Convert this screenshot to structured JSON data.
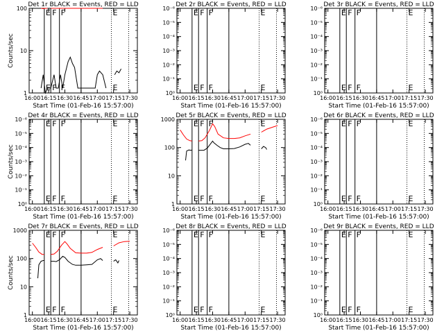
{
  "figure": {
    "xlabel": "Start Time (01-Feb-16 15:57:00)",
    "ylabel": "Counts/sec",
    "x_ticks": [
      "16:00",
      "16:15",
      "16:30",
      "16:45",
      "17:00",
      "17:15",
      "17:30"
    ],
    "line_colors": {
      "events": "#000000",
      "lld": "#ff0000"
    }
  },
  "chart_data": [
    {
      "type": "line",
      "title": "Det 1r BLACK = Events, RED = LLD",
      "xlabel": "Start Time (01-Feb-16 15:57:00)",
      "ylabel": "Counts/sec",
      "y_scale": "log",
      "ylim": [
        1,
        100
      ],
      "y_ticks": [
        "1",
        "10",
        "100"
      ],
      "xlim": [
        "15:57",
        "17:37"
      ],
      "solid_vlines": [
        "16:11",
        "16:17",
        "16:25",
        "16:45"
      ],
      "dotted_vlines": [
        "17:13",
        "17:29"
      ],
      "flags": [
        {
          "label": "E",
          "x": "16:11"
        },
        {
          "label": "F",
          "x": "16:17"
        },
        {
          "label": "F",
          "x": "16:25"
        },
        {
          "label": "E",
          "x": "17:13"
        }
      ],
      "series": [
        {
          "name": "Events",
          "color": "#000000",
          "points": [
            [
              "16:08",
              1.3
            ],
            [
              "16:10",
              2.7
            ],
            [
              "16:12",
              1.0
            ],
            [
              "16:14",
              1.3
            ],
            [
              "16:17",
              1.3
            ],
            [
              "16:20",
              2.7
            ],
            [
              "16:22",
              1.3
            ],
            [
              "16:24",
              1.3
            ],
            [
              "16:26",
              2.7
            ],
            [
              "16:28",
              1.3
            ],
            [
              "16:30",
              2.7
            ],
            [
              "16:33",
              5.5
            ],
            [
              "16:35",
              7.0
            ],
            [
              "16:37",
              5.0
            ],
            [
              "16:39",
              4.0
            ],
            [
              "16:42",
              1.3
            ],
            [
              "16:45",
              1.3
            ],
            [
              "16:48",
              1.3
            ],
            [
              "16:52",
              1.3
            ],
            [
              "16:55",
              1.3
            ],
            [
              "16:58",
              1.3
            ],
            [
              "17:00",
              2.7
            ],
            [
              "17:02",
              3.3
            ],
            [
              "17:05",
              2.7
            ],
            [
              "17:08",
              1.3
            ]
          ],
          "points_2": [
            [
              "17:16",
              2.7
            ],
            [
              "17:18",
              3.3
            ],
            [
              "17:20",
              3.0
            ],
            [
              "17:22",
              3.7
            ]
          ]
        },
        {
          "name": "LLD",
          "color": "#ff0000",
          "points": [
            [
              "16:08",
              100
            ],
            [
              "16:10",
              98
            ],
            [
              "16:12",
              100
            ],
            [
              "16:14",
              100
            ]
          ],
          "points_2": [
            [
              "16:17",
              100
            ],
            [
              "16:22",
              100
            ],
            [
              "16:30",
              100
            ],
            [
              "16:40",
              100
            ],
            [
              "16:50",
              100
            ],
            [
              "17:00",
              100
            ],
            [
              "17:05",
              100
            ]
          ],
          "points_3": []
        }
      ]
    },
    {
      "type": "line",
      "title": "Det 2r BLACK = Events, RED = LLD",
      "xlabel": "Start Time (01-Feb-16 15:57:00)",
      "ylabel": "",
      "y_scale": "log",
      "ylim": [
        1,
        1000000
      ],
      "y_ticks": [
        "10⁰",
        "10⁻¹",
        "10⁻²",
        "10⁻³",
        "10⁻⁴",
        "10⁻⁵",
        "10⁻⁶"
      ],
      "xlim": [
        "15:57",
        "17:37"
      ],
      "solid_vlines": [
        "16:11",
        "16:17",
        "16:25",
        "16:45"
      ],
      "dotted_vlines": [
        "17:13",
        "17:29"
      ],
      "flags": [
        {
          "label": "E",
          "x": "16:11"
        },
        {
          "label": "F",
          "x": "16:17"
        },
        {
          "label": "F",
          "x": "16:25"
        },
        {
          "label": "E",
          "x": "17:13"
        }
      ],
      "series": []
    },
    {
      "type": "line",
      "title": "Det 3r BLACK = Events, RED = LLD",
      "xlabel": "Start Time (01-Feb-16 15:57:00)",
      "ylabel": "",
      "y_scale": "log",
      "ylim": [
        1,
        1000000
      ],
      "y_ticks": [
        "10⁰",
        "10⁻¹",
        "10⁻²",
        "10⁻³",
        "10⁻⁴",
        "10⁻⁵",
        "10⁻⁶"
      ],
      "xlim": [
        "15:57",
        "17:37"
      ],
      "solid_vlines": [
        "16:11",
        "16:17",
        "16:25",
        "16:45"
      ],
      "dotted_vlines": [
        "17:13",
        "17:29"
      ],
      "flags": [
        {
          "label": "E",
          "x": "16:11"
        },
        {
          "label": "F",
          "x": "16:17"
        },
        {
          "label": "F",
          "x": "16:25"
        },
        {
          "label": "E",
          "x": "17:13"
        }
      ],
      "series": []
    },
    {
      "type": "line",
      "title": "Det 4r BLACK = Events, RED = LLD",
      "xlabel": "Start Time (01-Feb-16 15:57:00)",
      "ylabel": "Counts/sec",
      "y_scale": "log",
      "ylim": [
        1,
        1000000
      ],
      "y_ticks": [
        "10⁰",
        "10⁻¹",
        "10⁻²",
        "10⁻³",
        "10⁻⁴",
        "10⁻⁵",
        "10⁻⁶"
      ],
      "xlim": [
        "15:57",
        "17:37"
      ],
      "solid_vlines": [
        "16:11",
        "16:17",
        "16:25",
        "16:45"
      ],
      "dotted_vlines": [
        "17:13",
        "17:29"
      ],
      "flags": [
        {
          "label": "E",
          "x": "16:11"
        },
        {
          "label": "F",
          "x": "16:17"
        },
        {
          "label": "F",
          "x": "16:25"
        },
        {
          "label": "E",
          "x": "17:13"
        }
      ],
      "series": []
    },
    {
      "type": "line",
      "title": "Det 5r BLACK = Events, RED = LLD",
      "xlabel": "Start Time (01-Feb-16 15:57:00)",
      "ylabel": "",
      "y_scale": "log",
      "ylim": [
        1,
        1000
      ],
      "y_ticks": [
        "1",
        "10",
        "100",
        "1000"
      ],
      "xlim": [
        "15:57",
        "17:37"
      ],
      "solid_vlines": [
        "16:11",
        "16:17",
        "16:25",
        "16:45"
      ],
      "dotted_vlines": [
        "17:13",
        "17:29"
      ],
      "flags": [
        {
          "label": "E",
          "x": "16:11"
        },
        {
          "label": "F",
          "x": "16:17"
        },
        {
          "label": "F",
          "x": "16:25"
        },
        {
          "label": "E",
          "x": "17:13"
        }
      ],
      "series": [
        {
          "name": "Events",
          "color": "#000000",
          "points": [
            [
              "16:05",
              35
            ],
            [
              "16:06",
              75
            ],
            [
              "16:08",
              82
            ],
            [
              "16:10",
              80
            ],
            [
              "16:11",
              82
            ]
          ],
          "points_2": [
            [
              "16:17",
              80
            ],
            [
              "16:20",
              80
            ],
            [
              "16:22",
              80
            ],
            [
              "16:25",
              95
            ],
            [
              "16:28",
              135
            ],
            [
              "16:30",
              170
            ],
            [
              "16:31",
              150
            ],
            [
              "16:34",
              120
            ],
            [
              "16:37",
              100
            ],
            [
              "16:40",
              90
            ],
            [
              "16:45",
              90
            ],
            [
              "16:50",
              92
            ],
            [
              "16:55",
              105
            ],
            [
              "17:00",
              130
            ],
            [
              "17:03",
              140
            ],
            [
              "17:05",
              120
            ]
          ],
          "points_3": [
            [
              "17:15",
              90
            ],
            [
              "17:17",
              110
            ],
            [
              "17:19",
              100
            ],
            [
              "17:20",
              85
            ]
          ]
        },
        {
          "name": "LLD",
          "color": "#ff0000",
          "points": [
            [
              "16:00",
              420
            ],
            [
              "16:03",
              280
            ],
            [
              "16:06",
              200
            ],
            [
              "16:09",
              175
            ],
            [
              "16:11",
              170
            ]
          ],
          "points_2": [
            [
              "16:17",
              170
            ],
            [
              "16:20",
              175
            ],
            [
              "16:23",
              220
            ],
            [
              "16:27",
              400
            ],
            [
              "16:30",
              700
            ],
            [
              "16:32",
              550
            ],
            [
              "16:35",
              300
            ],
            [
              "16:40",
              220
            ],
            [
              "16:45",
              210
            ],
            [
              "16:50",
              210
            ],
            [
              "16:55",
              220
            ],
            [
              "17:00",
              260
            ],
            [
              "17:05",
              300
            ]
          ],
          "points_3": [
            [
              "17:15",
              350
            ],
            [
              "17:20",
              450
            ],
            [
              "17:25",
              520
            ],
            [
              "17:30",
              600
            ]
          ]
        }
      ]
    },
    {
      "type": "line",
      "title": "Det 6r BLACK = Events, RED = LLD",
      "xlabel": "Start Time (01-Feb-16 15:57:00)",
      "ylabel": "",
      "y_scale": "log",
      "ylim": [
        1,
        1000000
      ],
      "y_ticks": [
        "10⁰",
        "10⁻¹",
        "10⁻²",
        "10⁻³",
        "10⁻⁴",
        "10⁻⁵",
        "10⁻⁶"
      ],
      "xlim": [
        "15:57",
        "17:37"
      ],
      "solid_vlines": [
        "16:11",
        "16:17",
        "16:25",
        "16:45"
      ],
      "dotted_vlines": [
        "17:13",
        "17:29"
      ],
      "flags": [
        {
          "label": "E",
          "x": "16:11"
        },
        {
          "label": "F",
          "x": "16:17"
        },
        {
          "label": "F",
          "x": "16:25"
        },
        {
          "label": "E",
          "x": "17:13"
        }
      ],
      "series": []
    },
    {
      "type": "line",
      "title": "Det 7r BLACK = Events, RED = LLD",
      "xlabel": "Start Time (01-Feb-16 15:57:00)",
      "ylabel": "Counts/sec",
      "y_scale": "log",
      "ylim": [
        1,
        1000
      ],
      "y_ticks": [
        "1",
        "10",
        "100",
        "1000"
      ],
      "xlim": [
        "15:57",
        "17:37"
      ],
      "solid_vlines": [
        "16:11",
        "16:17",
        "16:25",
        "16:45"
      ],
      "dotted_vlines": [
        "17:13",
        "17:29"
      ],
      "flags": [
        {
          "label": "E",
          "x": "16:11"
        },
        {
          "label": "F",
          "x": "16:17"
        },
        {
          "label": "F",
          "x": "16:25"
        },
        {
          "label": "E",
          "x": "17:13"
        }
      ],
      "series": [
        {
          "name": "Events",
          "color": "#000000",
          "points": [
            [
              "16:05",
              20
            ],
            [
              "16:06",
              60
            ],
            [
              "16:08",
              80
            ],
            [
              "16:10",
              85
            ],
            [
              "16:11",
              85
            ]
          ],
          "points_2": [
            [
              "16:17",
              80
            ],
            [
              "16:20",
              80
            ],
            [
              "16:22",
              78
            ],
            [
              "16:25",
              90
            ],
            [
              "16:28",
              120
            ],
            [
              "16:30",
              110
            ],
            [
              "16:33",
              80
            ],
            [
              "16:37",
              62
            ],
            [
              "16:40",
              58
            ],
            [
              "16:45",
              58
            ],
            [
              "16:50",
              60
            ],
            [
              "16:55",
              62
            ],
            [
              "17:00",
              90
            ],
            [
              "17:03",
              100
            ],
            [
              "17:05",
              85
            ]
          ],
          "points_3": [
            [
              "17:15",
              80
            ],
            [
              "17:17",
              90
            ],
            [
              "17:19",
              70
            ],
            [
              "17:20",
              85
            ]
          ]
        },
        {
          "name": "LLD",
          "color": "#ff0000",
          "points": [
            [
              "16:00",
              350
            ],
            [
              "16:03",
              250
            ],
            [
              "16:06",
              170
            ],
            [
              "16:09",
              140
            ],
            [
              "16:11",
              140
            ]
          ],
          "points_2": [
            [
              "16:17",
              140
            ],
            [
              "16:20",
              145
            ],
            [
              "16:23",
              180
            ],
            [
              "16:27",
              300
            ],
            [
              "16:30",
              400
            ],
            [
              "16:32",
              330
            ],
            [
              "16:35",
              230
            ],
            [
              "16:40",
              160
            ],
            [
              "16:45",
              155
            ],
            [
              "16:50",
              155
            ],
            [
              "16:55",
              165
            ],
            [
              "17:00",
              210
            ],
            [
              "17:05",
              250
            ]
          ],
          "points_3": [
            [
              "17:15",
              280
            ],
            [
              "17:20",
              360
            ],
            [
              "17:25",
              400
            ],
            [
              "17:30",
              410
            ]
          ]
        }
      ]
    },
    {
      "type": "line",
      "title": "Det 8r BLACK = Events, RED = LLD",
      "xlabel": "Start Time (01-Feb-16 15:57:00)",
      "ylabel": "",
      "y_scale": "log",
      "ylim": [
        1,
        1000000
      ],
      "y_ticks": [
        "10⁰",
        "10⁻¹",
        "10⁻²",
        "10⁻³",
        "10⁻⁴",
        "10⁻⁵",
        "10⁻⁶"
      ],
      "xlim": [
        "15:57",
        "17:37"
      ],
      "solid_vlines": [
        "16:11",
        "16:17",
        "16:25",
        "16:45"
      ],
      "dotted_vlines": [
        "17:13",
        "17:29"
      ],
      "flags": [
        {
          "label": "E",
          "x": "16:11"
        },
        {
          "label": "F",
          "x": "16:17"
        },
        {
          "label": "F",
          "x": "16:25"
        },
        {
          "label": "E",
          "x": "17:13"
        }
      ],
      "series": []
    },
    {
      "type": "line",
      "title": "Det 9r BLACK = Events, RED = LLD",
      "xlabel": "Start Time (01-Feb-16 15:57:00)",
      "ylabel": "",
      "y_scale": "log",
      "ylim": [
        1,
        1000000
      ],
      "y_ticks": [
        "10⁰",
        "10⁻¹",
        "10⁻²",
        "10⁻³",
        "10⁻⁴",
        "10⁻⁵",
        "10⁻⁶"
      ],
      "xlim": [
        "15:57",
        "17:37"
      ],
      "solid_vlines": [
        "16:11",
        "16:17",
        "16:25",
        "16:45"
      ],
      "dotted_vlines": [
        "17:13",
        "17:29"
      ],
      "flags": [
        {
          "label": "E",
          "x": "16:11"
        },
        {
          "label": "F",
          "x": "16:17"
        },
        {
          "label": "F",
          "x": "16:25"
        },
        {
          "label": "E",
          "x": "17:13"
        }
      ],
      "series": []
    }
  ]
}
